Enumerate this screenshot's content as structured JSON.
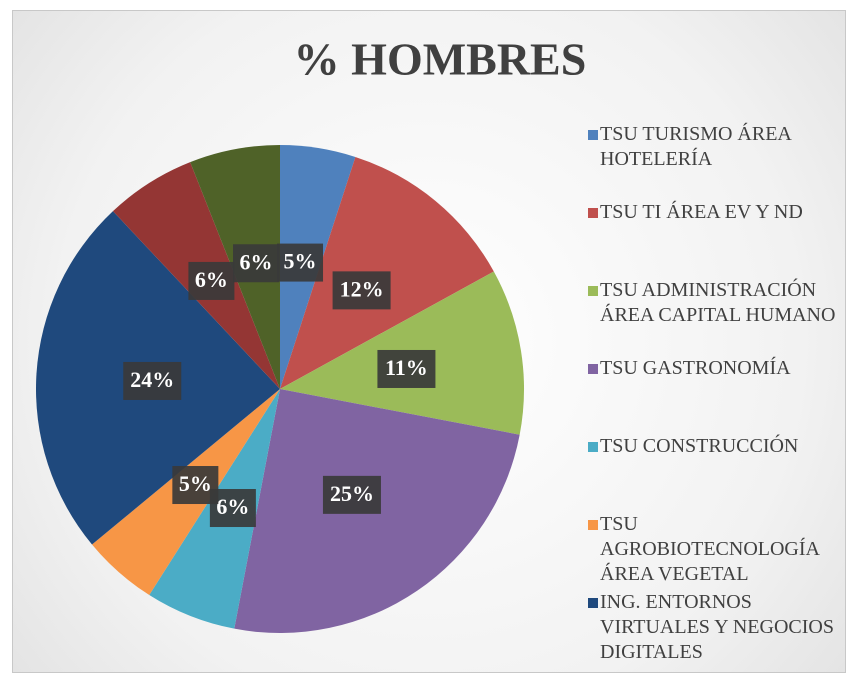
{
  "chart_data": {
    "type": "pie",
    "title": "% HOMBRES",
    "categories": [
      "TSU TURISMO ÁREA HOTELERÍA",
      "TSU TI ÁREA EV Y ND",
      "TSU ADMINISTRACIÓN ÁREA CAPITAL HUMANO",
      "TSU GASTRONOMÍA",
      "TSU CONSTRUCCIÓN",
      "TSU AGROBIOTECNOLOGÍA ÁREA VEGETAL",
      "ING. ENTORNOS VIRTUALES Y NEGOCIOS DIGITALES",
      null,
      null
    ],
    "values": [
      5,
      12,
      11,
      25,
      6,
      5,
      24,
      6,
      6
    ],
    "value_labels": [
      "5%",
      "12%",
      "11%",
      "25%",
      "6%",
      "5%",
      "24%",
      "6%",
      "6%"
    ],
    "colors": [
      "#4f81bd",
      "#c0504d",
      "#9bbb59",
      "#8064a2",
      "#4bacc6",
      "#f79646",
      "#1f497d",
      "#943634",
      "#4f6228"
    ],
    "legend": "right"
  }
}
